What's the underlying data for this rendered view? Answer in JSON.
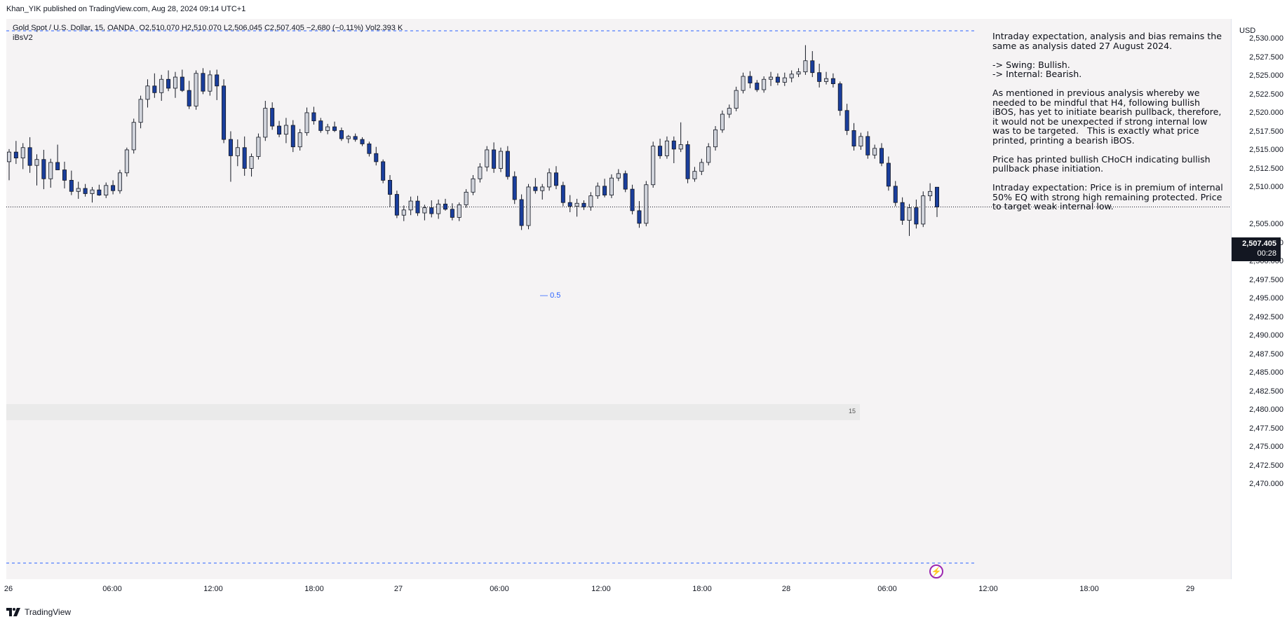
{
  "publisher": "Khan_YIK published on TradingView.com, Aug 28, 2024 09:14 UTC+1",
  "legend": {
    "symbol": "Gold Spot / U.S. Dollar, 15, OANDA",
    "ohlc": "O2,510.070 H2,510.070 L2,506.045 C2,507.405 −2.680 (−0.11%) Vol2.393 K",
    "indicator": "iBsV2"
  },
  "annotation": "Intraday expectation, analysis and bias remains the same as analysis dated 27 August 2024.\n\n-> Swing: Bullish.\n-> Internal: Bearish.\n\nAs mentioned in previous analysis whereby we needed to be mindful that H4, following bullish iBOS, has yet to initiate bearish pullback, therefore, it would not be unexpected if strong internal low was to be targeted.   This is exactly what price printed, printing a bearish iBOS.\n\nPrice has printed bullish CHoCH indicating bullish pullback phase initiation.\n\nIntraday expectation: Price is in premium of internal 50% EQ with strong high remaining protected. Price to target weak internal low.",
  "currency": "USD",
  "price_ticks": [
    "2,530.000",
    "2,527.500",
    "2,525.000",
    "2,522.500",
    "2,520.000",
    "2,517.500",
    "2,515.000",
    "2,512.500",
    "2,510.000",
    "2,507.405",
    "2,505.000",
    "2,502.500",
    "2,500.000",
    "2,497.500",
    "2,495.000",
    "2,492.500",
    "2,490.000",
    "2,487.500",
    "2,485.000",
    "2,482.500",
    "2,480.000",
    "2,477.500",
    "2,475.000",
    "2,472.500",
    "2,470.000"
  ],
  "current_price": {
    "value": "2,507.405",
    "countdown": "00:28"
  },
  "time_labels": [
    "26",
    "06:00",
    "12:00",
    "18:00",
    "27",
    "06:00",
    "12:00",
    "18:00",
    "28",
    "06:00",
    "12:00",
    "18:00",
    "29"
  ],
  "fib_label": "0.5",
  "ibs_panel_value": "15",
  "footer_brand": "TradingView",
  "icons": {
    "alert": "bolt-icon",
    "logo": "tradingview-logo-icon"
  },
  "colors": {
    "bull": "#d1d4dc",
    "bear": "#1a3e9c",
    "dashed": "#2962ff",
    "alert": "#9c27b0"
  },
  "chart_data": {
    "type": "candlestick",
    "ylim": [
      2469,
      2531.5
    ],
    "ohlc": [
      [
        2513.5,
        2515.2,
        2511.0,
        2514.8
      ],
      [
        2514.8,
        2516.3,
        2513.2,
        2514.0
      ],
      [
        2514.0,
        2516.0,
        2512.5,
        2515.4
      ],
      [
        2515.4,
        2516.8,
        2512.0,
        2513.0
      ],
      [
        2513.0,
        2514.5,
        2510.3,
        2513.8
      ],
      [
        2513.8,
        2515.1,
        2509.8,
        2511.2
      ],
      [
        2511.2,
        2513.9,
        2510.0,
        2513.4
      ],
      [
        2513.4,
        2515.8,
        2512.7,
        2512.4
      ],
      [
        2512.4,
        2513.5,
        2509.9,
        2511.0
      ],
      [
        2511.0,
        2512.3,
        2509.0,
        2509.5
      ],
      [
        2509.5,
        2510.8,
        2508.5,
        2509.9
      ],
      [
        2509.9,
        2510.5,
        2508.8,
        2509.2
      ],
      [
        2509.2,
        2510.1,
        2508.0,
        2509.7
      ],
      [
        2509.7,
        2510.4,
        2508.9,
        2509.0
      ],
      [
        2509.0,
        2510.7,
        2508.6,
        2510.3
      ],
      [
        2510.3,
        2511.0,
        2509.1,
        2509.6
      ],
      [
        2509.6,
        2512.4,
        2509.2,
        2512.0
      ],
      [
        2512.0,
        2515.4,
        2511.5,
        2515.1
      ],
      [
        2515.1,
        2519.3,
        2514.6,
        2518.8
      ],
      [
        2518.8,
        2522.4,
        2518.0,
        2521.9
      ],
      [
        2521.9,
        2524.6,
        2520.8,
        2523.7
      ],
      [
        2523.7,
        2525.4,
        2522.1,
        2522.8
      ],
      [
        2522.8,
        2525.2,
        2521.7,
        2524.6
      ],
      [
        2524.6,
        2525.8,
        2523.0,
        2523.4
      ],
      [
        2523.4,
        2525.6,
        2522.1,
        2524.9
      ],
      [
        2524.9,
        2525.9,
        2522.9,
        2523.1
      ],
      [
        2523.1,
        2524.4,
        2520.6,
        2521.0
      ],
      [
        2521.0,
        2525.8,
        2520.5,
        2525.4
      ],
      [
        2525.4,
        2526.1,
        2522.6,
        2523.0
      ],
      [
        2523.0,
        2525.8,
        2522.4,
        2525.2
      ],
      [
        2525.2,
        2525.9,
        2521.8,
        2523.7
      ],
      [
        2523.7,
        2524.6,
        2516.0,
        2516.5
      ],
      [
        2516.5,
        2517.6,
        2510.8,
        2514.3
      ],
      [
        2514.3,
        2516.5,
        2512.9,
        2515.4
      ],
      [
        2515.4,
        2516.9,
        2511.6,
        2512.6
      ],
      [
        2512.6,
        2514.6,
        2511.5,
        2514.2
      ],
      [
        2514.2,
        2517.3,
        2513.8,
        2516.8
      ],
      [
        2516.8,
        2521.7,
        2516.3,
        2520.7
      ],
      [
        2520.7,
        2521.5,
        2517.8,
        2518.3
      ],
      [
        2518.3,
        2519.0,
        2516.8,
        2517.2
      ],
      [
        2517.2,
        2519.4,
        2516.0,
        2518.4
      ],
      [
        2518.4,
        2519.1,
        2514.8,
        2515.5
      ],
      [
        2515.5,
        2517.9,
        2515.0,
        2517.4
      ],
      [
        2517.4,
        2520.8,
        2517.0,
        2520.1
      ],
      [
        2520.1,
        2520.9,
        2518.5,
        2519.0
      ],
      [
        2519.0,
        2519.4,
        2517.4,
        2517.7
      ],
      [
        2517.7,
        2518.6,
        2517.2,
        2518.2
      ],
      [
        2518.2,
        2518.9,
        2517.5,
        2517.7
      ],
      [
        2517.7,
        2518.1,
        2516.3,
        2516.6
      ],
      [
        2516.6,
        2517.1,
        2516.0,
        2516.9
      ],
      [
        2516.9,
        2517.3,
        2516.2,
        2516.5
      ],
      [
        2516.5,
        2516.8,
        2515.6,
        2515.9
      ],
      [
        2515.9,
        2516.2,
        2514.2,
        2514.6
      ],
      [
        2514.6,
        2515.5,
        2513.0,
        2513.5
      ],
      [
        2513.5,
        2513.8,
        2510.6,
        2511.0
      ],
      [
        2511.0,
        2511.7,
        2507.4,
        2509.1
      ],
      [
        2509.1,
        2509.6,
        2505.9,
        2506.3
      ],
      [
        2506.3,
        2507.6,
        2505.5,
        2507.0
      ],
      [
        2507.0,
        2508.8,
        2506.3,
        2508.2
      ],
      [
        2508.2,
        2508.9,
        2506.2,
        2506.6
      ],
      [
        2506.6,
        2507.7,
        2505.6,
        2507.3
      ],
      [
        2507.3,
        2508.3,
        2506.0,
        2506.5
      ],
      [
        2506.5,
        2508.4,
        2505.8,
        2507.8
      ],
      [
        2507.8,
        2508.5,
        2506.9,
        2507.1
      ],
      [
        2507.1,
        2507.9,
        2505.6,
        2506.0
      ],
      [
        2506.0,
        2508.0,
        2505.5,
        2507.7
      ],
      [
        2507.7,
        2509.8,
        2507.3,
        2509.4
      ],
      [
        2509.4,
        2511.7,
        2509.0,
        2511.2
      ],
      [
        2511.2,
        2513.3,
        2510.7,
        2512.8
      ],
      [
        2512.8,
        2515.6,
        2512.2,
        2515.1
      ],
      [
        2515.1,
        2516.1,
        2512.0,
        2512.6
      ],
      [
        2512.6,
        2515.4,
        2512.1,
        2514.9
      ],
      [
        2514.9,
        2515.6,
        2511.1,
        2511.5
      ],
      [
        2511.5,
        2512.2,
        2507.8,
        2508.4
      ],
      [
        2508.4,
        2509.1,
        2504.3,
        2504.9
      ],
      [
        2504.9,
        2510.5,
        2504.4,
        2510.1
      ],
      [
        2510.1,
        2511.3,
        2509.2,
        2509.6
      ],
      [
        2509.6,
        2510.5,
        2508.4,
        2510.1
      ],
      [
        2510.1,
        2512.6,
        2509.6,
        2512.0
      ],
      [
        2512.0,
        2512.9,
        2509.8,
        2510.3
      ],
      [
        2510.3,
        2510.8,
        2507.5,
        2508.0
      ],
      [
        2508.0,
        2509.0,
        2506.7,
        2507.5
      ],
      [
        2507.5,
        2508.5,
        2506.1,
        2507.9
      ],
      [
        2507.9,
        2508.3,
        2507.0,
        2507.4
      ],
      [
        2507.4,
        2509.4,
        2506.9,
        2508.9
      ],
      [
        2508.9,
        2510.7,
        2508.5,
        2510.2
      ],
      [
        2510.2,
        2511.2,
        2508.7,
        2509.0
      ],
      [
        2509.0,
        2511.8,
        2508.6,
        2511.3
      ],
      [
        2511.3,
        2512.5,
        2510.9,
        2511.9
      ],
      [
        2511.9,
        2512.3,
        2509.4,
        2509.8
      ],
      [
        2509.8,
        2510.4,
        2506.4,
        2506.9
      ],
      [
        2506.9,
        2508.2,
        2504.6,
        2505.2
      ],
      [
        2505.2,
        2510.9,
        2504.8,
        2510.4
      ],
      [
        2510.4,
        2516.2,
        2510.0,
        2515.6
      ],
      [
        2515.6,
        2516.6,
        2513.9,
        2514.3
      ],
      [
        2514.3,
        2516.9,
        2513.9,
        2516.3
      ],
      [
        2516.3,
        2516.9,
        2513.3,
        2515.2
      ],
      [
        2515.2,
        2518.8,
        2514.8,
        2515.8
      ],
      [
        2515.8,
        2516.3,
        2510.6,
        2511.2
      ],
      [
        2511.2,
        2512.8,
        2510.8,
        2512.2
      ],
      [
        2512.2,
        2513.9,
        2511.7,
        2513.4
      ],
      [
        2513.4,
        2516.0,
        2513.0,
        2515.5
      ],
      [
        2515.5,
        2518.3,
        2515.0,
        2517.8
      ],
      [
        2517.8,
        2520.4,
        2517.4,
        2519.9
      ],
      [
        2519.9,
        2521.2,
        2519.4,
        2520.7
      ],
      [
        2520.7,
        2523.6,
        2520.3,
        2523.1
      ],
      [
        2523.1,
        2525.5,
        2522.7,
        2525.0
      ],
      [
        2525.0,
        2525.7,
        2523.4,
        2524.1
      ],
      [
        2524.1,
        2524.5,
        2522.9,
        2523.2
      ],
      [
        2523.2,
        2525.0,
        2522.8,
        2524.6
      ],
      [
        2524.6,
        2525.6,
        2523.7,
        2524.9
      ],
      [
        2524.9,
        2525.4,
        2523.8,
        2524.2
      ],
      [
        2524.2,
        2525.5,
        2523.7,
        2524.8
      ],
      [
        2524.8,
        2525.8,
        2524.2,
        2525.3
      ],
      [
        2525.3,
        2526.1,
        2524.9,
        2525.6
      ],
      [
        2525.6,
        2529.2,
        2525.2,
        2527.1
      ],
      [
        2527.1,
        2528.4,
        2524.9,
        2525.5
      ],
      [
        2525.5,
        2526.7,
        2523.5,
        2524.3
      ],
      [
        2524.3,
        2525.6,
        2523.9,
        2524.7
      ],
      [
        2524.7,
        2525.4,
        2523.5,
        2524.0
      ],
      [
        2524.0,
        2524.3,
        2519.7,
        2520.4
      ],
      [
        2520.4,
        2521.3,
        2517.1,
        2517.7
      ],
      [
        2517.7,
        2518.7,
        2515.0,
        2515.6
      ],
      [
        2515.6,
        2517.4,
        2515.1,
        2516.9
      ],
      [
        2516.9,
        2517.6,
        2513.9,
        2514.4
      ],
      [
        2514.4,
        2515.8,
        2513.9,
        2515.3
      ],
      [
        2515.3,
        2516.0,
        2512.9,
        2513.3
      ],
      [
        2513.3,
        2514.2,
        2509.6,
        2510.2
      ],
      [
        2510.2,
        2510.9,
        2507.5,
        2508.0
      ],
      [
        2508.0,
        2508.7,
        2505.0,
        2505.6
      ],
      [
        2505.6,
        2507.8,
        2503.5,
        2507.3
      ],
      [
        2507.3,
        2508.4,
        2504.5,
        2505.1
      ],
      [
        2505.1,
        2509.5,
        2504.7,
        2508.9
      ],
      [
        2508.9,
        2510.6,
        2508.2,
        2509.5
      ],
      [
        2510.07,
        2510.07,
        2506.045,
        2507.405
      ]
    ]
  }
}
